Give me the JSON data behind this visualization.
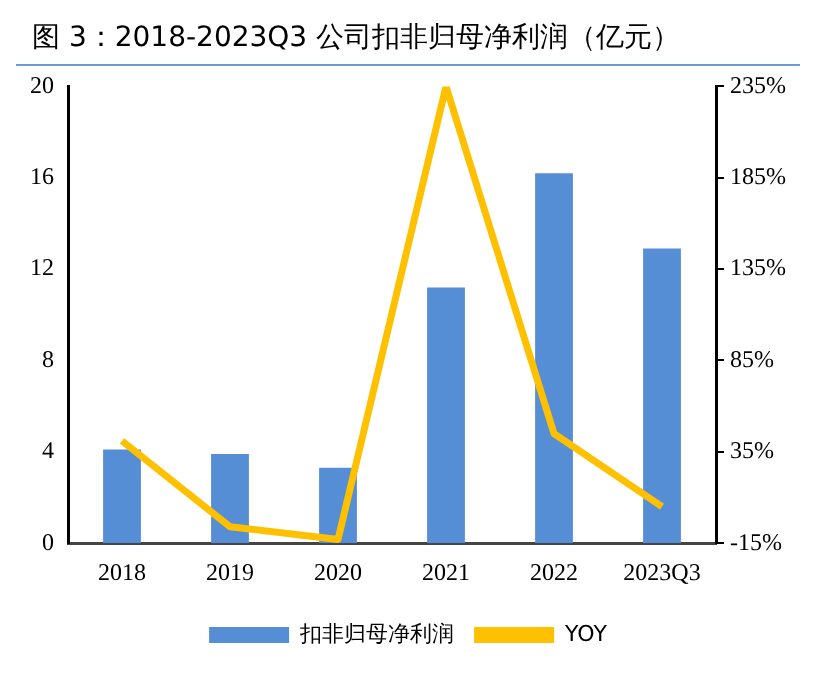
{
  "chart_data": {
    "type": "bar",
    "title": "图 3：2018-2023Q3 公司扣非归母净利润（亿元）",
    "categories": [
      "2018",
      "2019",
      "2020",
      "2021",
      "2022",
      "2023Q3"
    ],
    "series": [
      {
        "name": "扣非归母净利润",
        "color": "#558ed5",
        "values": [
          4.1,
          3.9,
          3.3,
          11.2,
          16.2,
          12.9
        ]
      },
      {
        "name": "YOY",
        "type": "line",
        "axis": "y2",
        "color": "#ffc000",
        "marker": "none",
        "values": [
          41,
          -6,
          -13,
          235,
          45,
          5
        ]
      }
    ],
    "ylim": [
      0,
      20
    ],
    "yticks": [
      0,
      4,
      8,
      12,
      16,
      20
    ],
    "y2lim": [
      -15,
      235
    ],
    "y2ticks": [
      {
        "value": -15,
        "label": "-15%"
      },
      {
        "value": 35,
        "label": "35%"
      },
      {
        "value": 85,
        "label": "85%"
      },
      {
        "value": 135,
        "label": "135%"
      },
      {
        "value": 185,
        "label": "185%"
      },
      {
        "value": 235,
        "label": "235%"
      }
    ],
    "grid": false,
    "legend": "bottom"
  }
}
